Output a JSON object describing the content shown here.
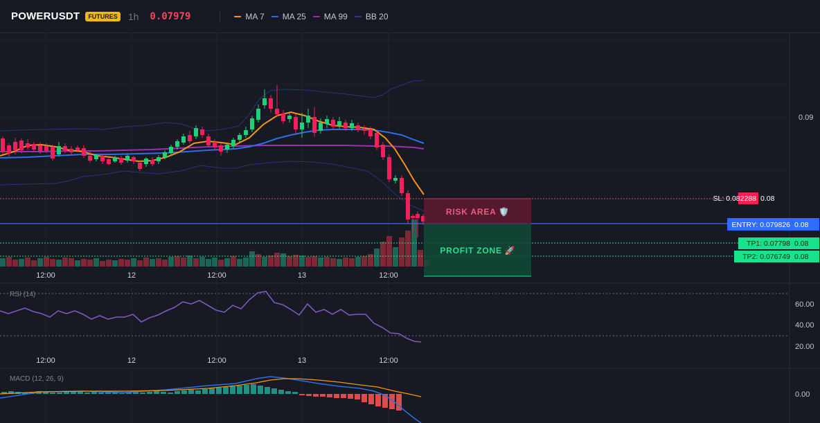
{
  "header": {
    "symbol": "POWERUSDT",
    "badge": "FUTURES",
    "interval": "1h",
    "price": "0.07979",
    "indicators": [
      {
        "name": "MA 7",
        "color": "#f7931a"
      },
      {
        "name": "MA 25",
        "color": "#2e6ee6"
      },
      {
        "name": "MA 99",
        "color": "#9c27b0"
      },
      {
        "name": "BB 20",
        "color": "#2a3b8f"
      }
    ]
  },
  "price_axis": {
    "label": "0.09"
  },
  "price_labels": {
    "sl": "SL: 0.082288",
    "sl_value": "0.08",
    "entry": "ENTRY: 0.079826",
    "entry_value": "0.08",
    "tp1": "TP1: 0.07798",
    "tp1_value": "0.08",
    "tp2": "TP2: 0.076749",
    "tp2_value": "0.08"
  },
  "zones": {
    "risk": "RISK AREA 🛡️",
    "profit": "PROFIT ZONE 🚀"
  },
  "time_axis": {
    "labels": [
      "12:00",
      "12",
      "12:00",
      "13",
      "12:00"
    ]
  },
  "rsi": {
    "title": "RSI (14)",
    "ticks": [
      "60.00",
      "40.00",
      "20.00"
    ]
  },
  "macd": {
    "title": "MACD (12, 26, 9)",
    "tick": "0.00"
  },
  "colors": {
    "up": "#26a69a",
    "down": "#ef5350",
    "candle_up": "#1fcf7a",
    "candle_down": "#f2205a",
    "sl": "#f6465d",
    "entry": "#3a6ff0",
    "tp": "#19e38a"
  }
}
